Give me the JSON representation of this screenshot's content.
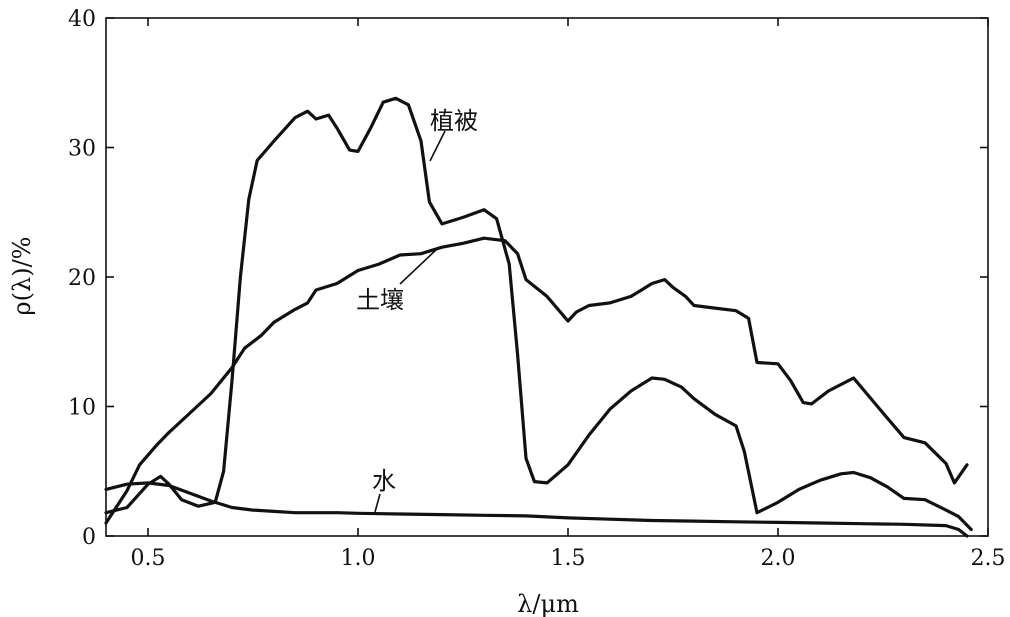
{
  "chart_data": {
    "type": "line",
    "xlabel": "λ/μm",
    "ylabel": "ρ(λ)/%",
    "xlim": [
      0.4,
      2.5
    ],
    "ylim": [
      0,
      40
    ],
    "xticks": [
      "0.5",
      "1.0",
      "1.5",
      "2.0",
      "2.5"
    ],
    "yticks": [
      "0",
      "10",
      "20",
      "30",
      "40"
    ],
    "grid": false,
    "series": [
      {
        "name": "植被",
        "x": [
          0.4,
          0.45,
          0.5,
          0.53,
          0.55,
          0.58,
          0.62,
          0.66,
          0.68,
          0.7,
          0.72,
          0.74,
          0.76,
          0.8,
          0.85,
          0.88,
          0.9,
          0.93,
          0.95,
          0.98,
          1.0,
          1.03,
          1.06,
          1.09,
          1.12,
          1.15,
          1.17,
          1.2,
          1.25,
          1.3,
          1.33,
          1.36,
          1.38,
          1.4,
          1.42,
          1.45,
          1.5,
          1.55,
          1.6,
          1.65,
          1.7,
          1.73,
          1.77,
          1.8,
          1.85,
          1.9,
          1.92,
          1.95,
          2.0,
          2.05,
          2.1,
          2.15,
          2.18,
          2.22,
          2.26,
          2.3,
          2.35,
          2.4,
          2.43,
          2.46
        ],
        "values": [
          1.8,
          2.2,
          4.0,
          4.6,
          4.0,
          2.8,
          2.3,
          2.6,
          5.0,
          12.0,
          20.0,
          26.0,
          29.0,
          30.5,
          32.3,
          32.8,
          32.2,
          32.5,
          31.5,
          29.8,
          29.7,
          31.5,
          33.5,
          33.8,
          33.3,
          30.5,
          25.8,
          24.1,
          24.6,
          25.2,
          24.5,
          21.0,
          14.0,
          6.0,
          4.2,
          4.1,
          5.5,
          7.8,
          9.8,
          11.2,
          12.2,
          12.1,
          11.5,
          10.6,
          9.4,
          8.5,
          6.5,
          1.8,
          2.6,
          3.6,
          4.3,
          4.8,
          4.9,
          4.5,
          3.8,
          2.9,
          2.8,
          2.0,
          1.5,
          0.5
        ]
      },
      {
        "name": "土壤",
        "x": [
          0.4,
          0.45,
          0.48,
          0.52,
          0.55,
          0.6,
          0.65,
          0.7,
          0.73,
          0.77,
          0.8,
          0.85,
          0.88,
          0.9,
          0.95,
          1.0,
          1.05,
          1.1,
          1.15,
          1.2,
          1.25,
          1.3,
          1.35,
          1.38,
          1.4,
          1.45,
          1.5,
          1.52,
          1.55,
          1.6,
          1.65,
          1.7,
          1.73,
          1.75,
          1.78,
          1.8,
          1.85,
          1.9,
          1.93,
          1.95,
          2.0,
          2.03,
          2.06,
          2.08,
          2.12,
          2.18,
          2.25,
          2.3,
          2.35,
          2.4,
          2.42,
          2.45
        ],
        "values": [
          1.0,
          3.5,
          5.5,
          7.0,
          8.0,
          9.5,
          11.0,
          13.0,
          14.5,
          15.5,
          16.5,
          17.5,
          18.0,
          19.0,
          19.5,
          20.5,
          21.0,
          21.7,
          21.8,
          22.3,
          22.6,
          23.0,
          22.8,
          21.8,
          19.8,
          18.5,
          16.6,
          17.3,
          17.8,
          18.0,
          18.5,
          19.5,
          19.8,
          19.2,
          18.5,
          17.8,
          17.6,
          17.4,
          16.8,
          13.4,
          13.3,
          12.0,
          10.3,
          10.2,
          11.2,
          12.2,
          9.5,
          7.6,
          7.2,
          5.6,
          4.1,
          5.5
        ]
      },
      {
        "name": "水",
        "x": [
          0.4,
          0.45,
          0.5,
          0.55,
          0.6,
          0.65,
          0.7,
          0.75,
          0.8,
          0.85,
          0.9,
          0.95,
          1.0,
          1.1,
          1.2,
          1.3,
          1.4,
          1.5,
          1.6,
          1.7,
          1.8,
          1.9,
          2.0,
          2.1,
          2.2,
          2.3,
          2.4,
          2.43,
          2.45
        ],
        "values": [
          3.6,
          4.0,
          4.1,
          3.9,
          3.3,
          2.7,
          2.2,
          2.0,
          1.9,
          1.8,
          1.8,
          1.8,
          1.75,
          1.7,
          1.65,
          1.6,
          1.55,
          1.4,
          1.3,
          1.2,
          1.15,
          1.1,
          1.05,
          1.0,
          0.95,
          0.9,
          0.8,
          0.5,
          0.0
        ]
      }
    ]
  }
}
